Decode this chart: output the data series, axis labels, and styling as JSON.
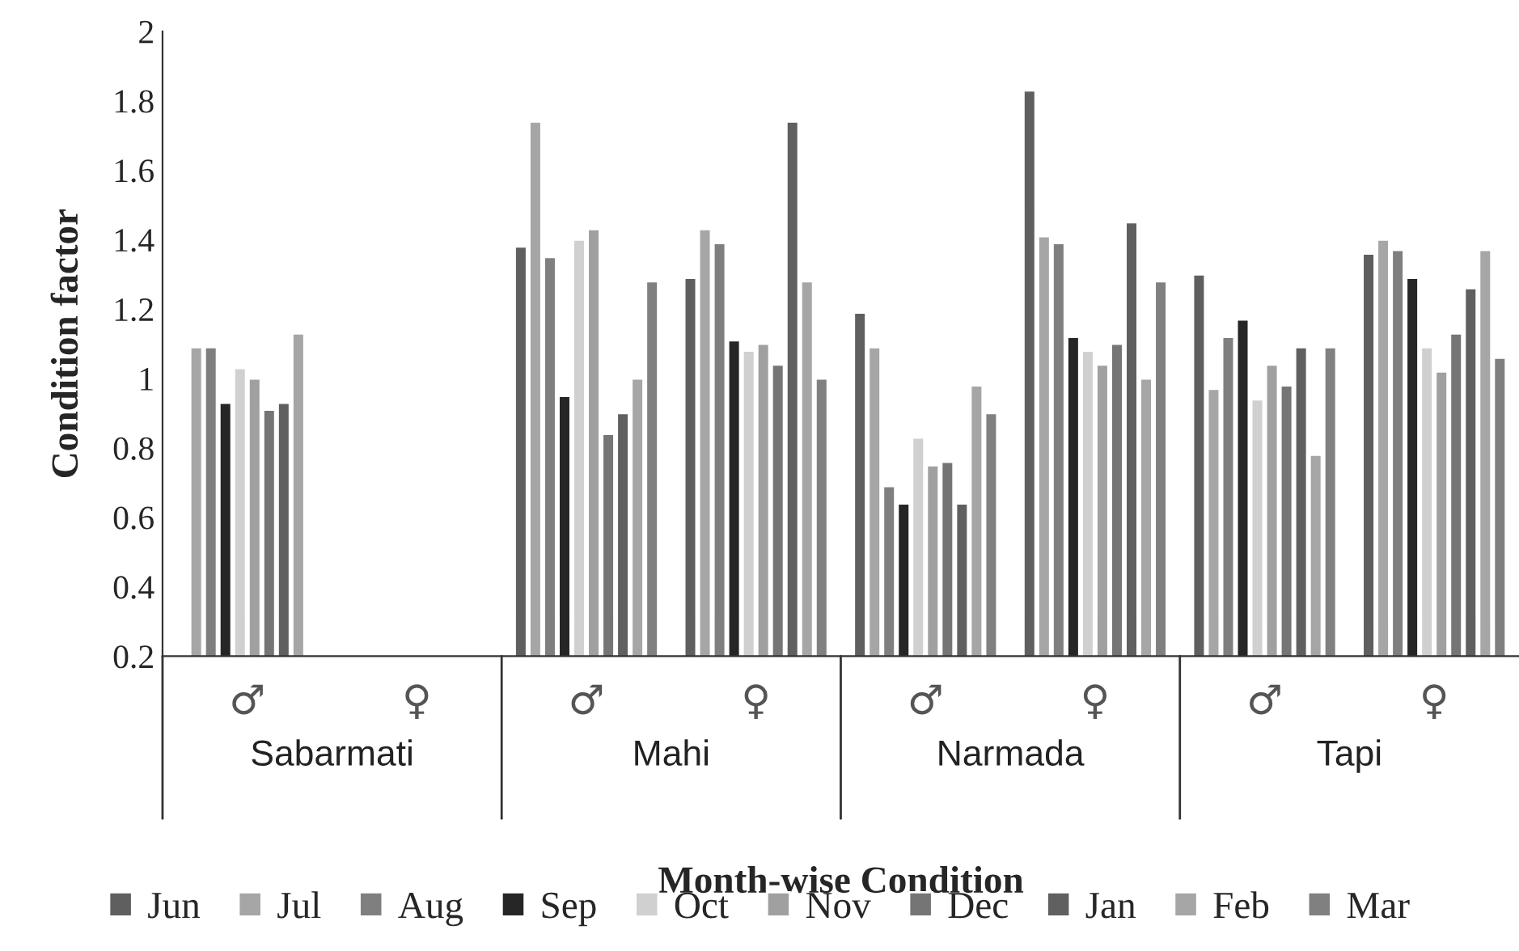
{
  "chart_data": {
    "type": "bar",
    "xlabel": "Month-wise Condition",
    "ylabel": "Condition factor",
    "categories": [
      "♂",
      "♀",
      "♂",
      "♀",
      "♂",
      "♀",
      "♂",
      "♀"
    ],
    "annotations": [
      "Sabarmati",
      "Mahi",
      "Narmada",
      "Tapi"
    ],
    "ylim": [
      0.2,
      2
    ],
    "yticks": [
      0.2,
      0.4,
      0.6,
      0.8,
      1,
      1.2,
      1.4,
      1.6,
      1.8,
      2
    ],
    "grid": false,
    "legend": "bottom",
    "series": [
      {
        "name": "Jun",
        "color": "#5f5f5f",
        "values": [
          null,
          null,
          1.38,
          1.29,
          1.19,
          1.83,
          1.3,
          1.36
        ]
      },
      {
        "name": "Jul",
        "color": "#a6a6a6",
        "values": [
          1.09,
          null,
          1.74,
          1.43,
          1.09,
          1.41,
          0.97,
          1.4
        ]
      },
      {
        "name": "Aug",
        "color": "#7f7f7f",
        "values": [
          1.09,
          null,
          1.35,
          1.39,
          0.69,
          1.39,
          1.12,
          1.37
        ]
      },
      {
        "name": "Sep",
        "color": "#262626",
        "values": [
          0.93,
          null,
          0.95,
          1.11,
          0.64,
          1.12,
          1.17,
          1.29
        ]
      },
      {
        "name": "Oct",
        "color": "#d0d0d0",
        "values": [
          1.03,
          null,
          1.4,
          1.08,
          0.83,
          1.08,
          0.94,
          1.09
        ]
      },
      {
        "name": "Nov",
        "color": "#a0a0a0",
        "values": [
          1.0,
          null,
          1.43,
          1.1,
          0.75,
          1.04,
          1.04,
          1.02
        ]
      },
      {
        "name": "Dec",
        "color": "#757575",
        "values": [
          0.91,
          null,
          0.84,
          1.04,
          0.76,
          1.1,
          0.98,
          1.13
        ]
      },
      {
        "name": "Jan",
        "color": "#606060",
        "values": [
          0.93,
          null,
          0.9,
          1.74,
          0.64,
          1.45,
          1.09,
          1.26
        ]
      },
      {
        "name": "Feb",
        "color": "#a6a6a6",
        "values": [
          1.13,
          null,
          1.0,
          1.28,
          0.98,
          1.0,
          0.78,
          1.37
        ]
      },
      {
        "name": "Mar",
        "color": "#808080",
        "values": [
          null,
          null,
          1.28,
          1.0,
          0.9,
          1.28,
          1.09,
          1.06
        ]
      }
    ]
  }
}
